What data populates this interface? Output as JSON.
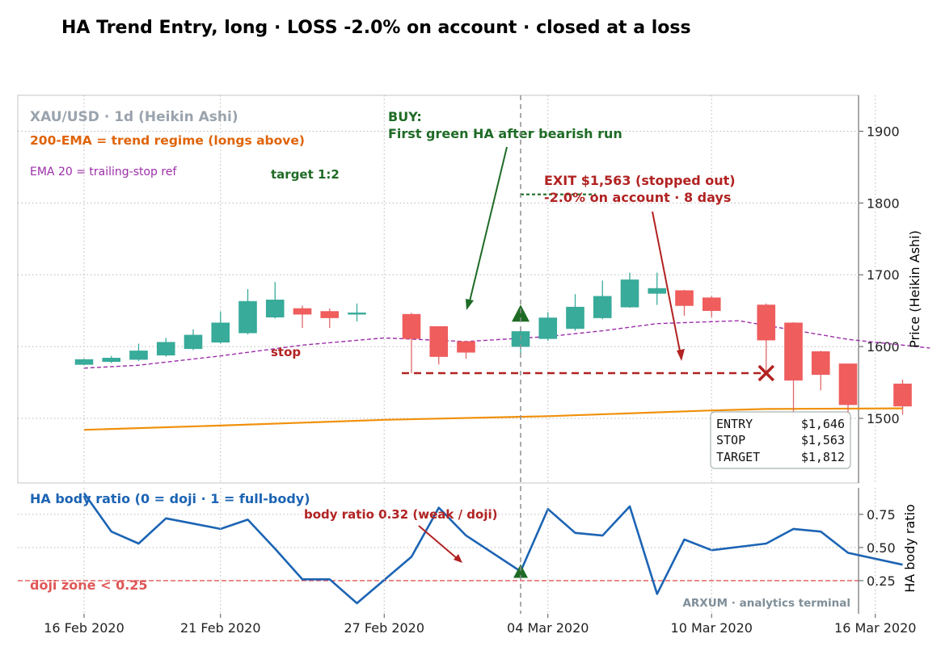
{
  "chart_data": {
    "title": "HA Trend Entry, long · LOSS -2.0% on account · closed at a loss",
    "price_panel": {
      "type": "candlestick",
      "symbol_label": "XAU/USD · 1d (Heikin Ashi)",
      "ylabel": "Price (Heikin Ashi)",
      "ylim": [
        1410,
        1950
      ],
      "yticks": [
        1500,
        1600,
        1700,
        1800,
        1900
      ],
      "grid": true,
      "candles": [
        {
          "date": "2020-02-16",
          "open": 1575,
          "close": 1582,
          "high": 1583,
          "low": 1574
        },
        {
          "date": "2020-02-17",
          "open": 1579,
          "close": 1584,
          "high": 1587,
          "low": 1577
        },
        {
          "date": "2020-02-18",
          "open": 1582,
          "close": 1594,
          "high": 1604,
          "low": 1580
        },
        {
          "date": "2020-02-19",
          "open": 1588,
          "close": 1606,
          "high": 1612,
          "low": 1586
        },
        {
          "date": "2020-02-20",
          "open": 1597,
          "close": 1616,
          "high": 1624,
          "low": 1595
        },
        {
          "date": "2020-02-21",
          "open": 1606,
          "close": 1633,
          "high": 1649,
          "low": 1604
        },
        {
          "date": "2020-02-22",
          "open": 1619,
          "close": 1663,
          "high": 1680,
          "low": 1617
        },
        {
          "date": "2020-02-23",
          "open": 1641,
          "close": 1665,
          "high": 1690,
          "low": 1639
        },
        {
          "date": "2020-02-24",
          "open": 1653,
          "close": 1645,
          "high": 1657,
          "low": 1626
        },
        {
          "date": "2020-02-25",
          "open": 1649,
          "close": 1640,
          "high": 1653,
          "low": 1626
        },
        {
          "date": "2020-02-26",
          "open": 1645,
          "close": 1647,
          "high": 1660,
          "low": 1635
        },
        {
          "date": "2020-02-28",
          "open": 1645,
          "close": 1611,
          "high": 1647,
          "low": 1563
        },
        {
          "date": "2020-02-29",
          "open": 1628,
          "close": 1586,
          "high": 1628,
          "low": 1575
        },
        {
          "date": "2020-03-01",
          "open": 1607,
          "close": 1592,
          "high": 1608,
          "low": 1583
        },
        {
          "date": "2020-03-03",
          "open": 1600,
          "close": 1621,
          "high": 1623,
          "low": 1590
        },
        {
          "date": "2020-03-04",
          "open": 1611,
          "close": 1640,
          "high": 1648,
          "low": 1608
        },
        {
          "date": "2020-03-05",
          "open": 1625,
          "close": 1655,
          "high": 1673,
          "low": 1622
        },
        {
          "date": "2020-03-06",
          "open": 1640,
          "close": 1670,
          "high": 1692,
          "low": 1638
        },
        {
          "date": "2020-03-07",
          "open": 1655,
          "close": 1693,
          "high": 1703,
          "low": 1654
        },
        {
          "date": "2020-03-08",
          "open": 1674,
          "close": 1681,
          "high": 1703,
          "low": 1658
        },
        {
          "date": "2020-03-09",
          "open": 1678,
          "close": 1657,
          "high": 1679,
          "low": 1643
        },
        {
          "date": "2020-03-10",
          "open": 1668,
          "close": 1650,
          "high": 1670,
          "low": 1641
        },
        {
          "date": "2020-03-12",
          "open": 1658,
          "close": 1609,
          "high": 1660,
          "low": 1565
        },
        {
          "date": "2020-03-13",
          "open": 1633,
          "close": 1553,
          "high": 1634,
          "low": 1502
        },
        {
          "date": "2020-03-14",
          "open": 1593,
          "close": 1561,
          "high": 1594,
          "low": 1539
        },
        {
          "date": "2020-03-15",
          "open": 1576,
          "close": 1519,
          "high": 1576,
          "low": 1503
        },
        {
          "date": "2020-03-17",
          "open": 1548,
          "close": 1517,
          "high": 1554,
          "low": 1505
        }
      ],
      "ema200": {
        "label": "200-EMA = trend regime (longs above)",
        "color": "#f0900a",
        "points": [
          [
            "2020-02-16",
            1484
          ],
          [
            "2020-02-21",
            1490
          ],
          [
            "2020-02-27",
            1498
          ],
          [
            "2020-03-04",
            1503
          ],
          [
            "2020-03-10",
            1511
          ],
          [
            "2020-03-12",
            1513
          ],
          [
            "2020-03-17",
            1514
          ]
        ]
      },
      "ema20": {
        "label": "EMA 20 = trailing-stop ref",
        "color": "#9b2ea8",
        "points": [
          [
            "2020-02-16",
            1570
          ],
          [
            "2020-02-18",
            1574
          ],
          [
            "2020-02-21",
            1587
          ],
          [
            "2020-02-24",
            1602
          ],
          [
            "2020-02-27",
            1612
          ],
          [
            "2020-03-01",
            1607
          ],
          [
            "2020-03-04",
            1614
          ],
          [
            "2020-03-06",
            1622
          ],
          [
            "2020-03-08",
            1632
          ],
          [
            "2020-03-11",
            1636
          ],
          [
            "2020-03-13",
            1623
          ],
          [
            "2020-03-15",
            1610
          ],
          [
            "2020-03-18",
            1598
          ]
        ]
      },
      "entry_date": "2020-03-03",
      "stop_line": {
        "label": "stop",
        "value": 1563,
        "from": "2020-02-28",
        "to": "2020-03-12",
        "color": "#b22222"
      },
      "target_line": {
        "label": "target 1:2",
        "value": 1812,
        "from": "2020-03-03",
        "to": "2020-03-06",
        "color": "#1f6b26"
      },
      "buy_marker": {
        "date": "2020-03-03",
        "value": 1646,
        "color": "#1f6b26"
      },
      "exit_marker": {
        "date": "2020-03-12",
        "value": 1563,
        "color": "#b22222"
      },
      "buy_annotation": [
        "BUY:",
        "First green HA after bearish run"
      ],
      "exit_annotation": [
        "EXIT $1,563 (stopped out)",
        "-2.0% on account  ·  8 days"
      ],
      "summary": [
        {
          "label": "ENTRY",
          "value": "$1,646"
        },
        {
          "label": "STOP",
          "value": "$1,563"
        },
        {
          "label": "TARGET",
          "value": "$1,812"
        }
      ]
    },
    "ratio_panel": {
      "type": "line",
      "title": "HA body ratio (0 = doji · 1 = full-body)",
      "ylabel": "HA body ratio",
      "ylim": [
        0.0,
        0.95
      ],
      "yticks": [
        0.25,
        0.5,
        0.75
      ],
      "yticklabels": [
        "0.25",
        "0.50",
        "0.75"
      ],
      "color": "#1c64b4",
      "values": [
        0.91,
        0.62,
        0.53,
        0.72,
        0.68,
        0.64,
        0.71,
        0.49,
        0.26,
        0.26,
        0.08,
        0.43,
        0.8,
        0.59,
        0.32,
        0.79,
        0.61,
        0.59,
        0.81,
        0.15,
        0.56,
        0.48,
        0.53,
        0.64,
        0.62,
        0.46,
        0.37
      ],
      "doji_threshold": {
        "value": 0.25,
        "label": "doji zone < 0.25",
        "color": "#e05757"
      },
      "marker": {
        "date": "2020-03-03",
        "value": 0.32,
        "color": "#1f6b26"
      },
      "annotation": "body ratio 0.32 (weak / doji)"
    },
    "x_axis": {
      "ticks": [
        "2020-02-16",
        "2020-02-21",
        "2020-02-27",
        "2020-03-04",
        "2020-03-10",
        "2020-03-16"
      ],
      "ticklabels": [
        "16 Feb 2020",
        "21 Feb 2020",
        "27 Feb 2020",
        "04 Mar 2020",
        "10 Mar 2020",
        "16 Mar 2020"
      ]
    },
    "watermark": "ARXUM · analytics terminal",
    "colors": {
      "bull": "#38ab9a",
      "bear": "#ef5d5d",
      "bull_wick": "#38ab9a",
      "bear_wick": "#e26868"
    }
  }
}
